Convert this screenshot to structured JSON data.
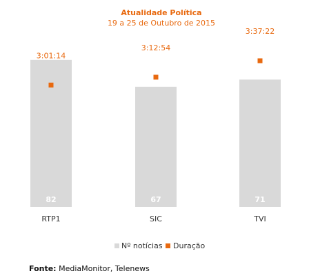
{
  "chart_data": {
    "type": "bar",
    "title": "Atualidade Política",
    "subtitle": "19 a 25 de Outubro de 2015",
    "categories": [
      "RTP1",
      "SIC",
      "TVI"
    ],
    "series": [
      {
        "name": "Nº notícias",
        "type": "bar",
        "values": [
          82,
          67,
          71
        ],
        "color": "#d9d9d9"
      },
      {
        "name": "Duração",
        "type": "scatter",
        "values": [
          "3:01:14",
          "3:12:54",
          "3:37:22"
        ],
        "seconds": [
          10874,
          11574,
          13042
        ],
        "color": "#e8690f"
      }
    ],
    "bar_ylim": [
      0,
      100
    ],
    "duration_ylim_seconds": [
      0,
      16000
    ],
    "legend_position": "bottom",
    "grid": false
  },
  "colors": {
    "accent": "#e8690f",
    "bar": "#d9d9d9",
    "bar_label": "#ffffff"
  },
  "source": {
    "label": "Fonte:",
    "text": " MediaMonitor, Telenews"
  }
}
